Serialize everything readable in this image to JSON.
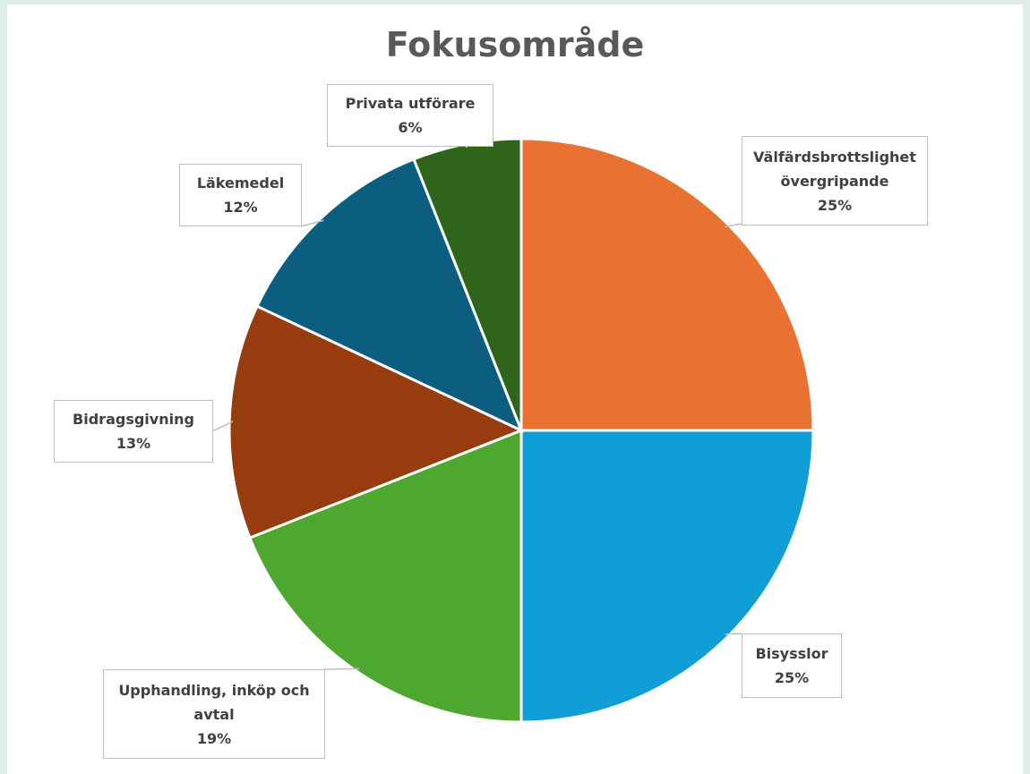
{
  "chart_data": {
    "type": "pie",
    "title": "Fokusområde",
    "categories": [
      "Välfärdsbrottslighet övergripande",
      "Bisysslor",
      "Upphandling, inköp och avtal",
      "Bidragsgivning",
      "Läkemedel",
      "Privata utförare"
    ],
    "values": [
      25,
      25,
      19,
      13,
      12,
      6
    ],
    "value_labels": [
      "25%",
      "25%",
      "19%",
      "13%",
      "12%",
      "6%"
    ],
    "colors": [
      "#e97132",
      "#0f9ed5",
      "#4ea72e",
      "#963c0f",
      "#0b5e80",
      "#2e651b"
    ]
  }
}
